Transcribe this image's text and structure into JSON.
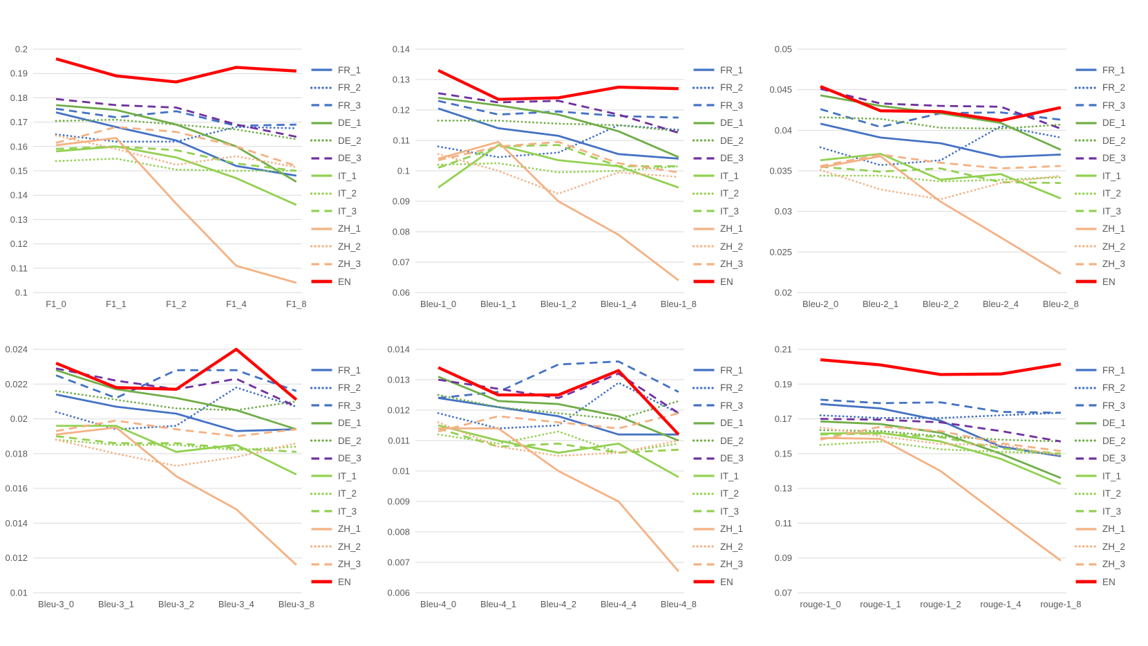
{
  "page": {
    "background": "#ffffff"
  },
  "palette": {
    "fr_blue": "#4472C4",
    "de_green": "#70AD47",
    "de3_purple": "#7030A0",
    "it_green": "#92D050",
    "zh_peach": "#F4B183",
    "en_red": "#FF0000",
    "gridline": "#D9D9D9",
    "axis_text": "#595959",
    "legend_text": "#595959"
  },
  "series_styles": {
    "FR_1": {
      "color": "#4472C4",
      "dash": "solid",
      "width": 2.8
    },
    "FR_2": {
      "color": "#4472C4",
      "dash": "dotted",
      "width": 2.8
    },
    "FR_3": {
      "color": "#4472C4",
      "dash": "dashed",
      "width": 2.8
    },
    "DE_1": {
      "color": "#70AD47",
      "dash": "solid",
      "width": 2.8
    },
    "DE_2": {
      "color": "#70AD47",
      "dash": "dotted",
      "width": 2.8
    },
    "DE_3": {
      "color": "#7030A0",
      "dash": "dashed",
      "width": 2.8
    },
    "IT_1": {
      "color": "#92D050",
      "dash": "solid",
      "width": 2.8
    },
    "IT_2": {
      "color": "#92D050",
      "dash": "dotted",
      "width": 2.8
    },
    "IT_3": {
      "color": "#92D050",
      "dash": "dashed",
      "width": 2.8
    },
    "ZH_1": {
      "color": "#F4B183",
      "dash": "solid",
      "width": 2.8
    },
    "ZH_2": {
      "color": "#F4B183",
      "dash": "dotted",
      "width": 2.8
    },
    "ZH_3": {
      "color": "#F4B183",
      "dash": "dashed",
      "width": 2.8
    },
    "EN": {
      "color": "#FF0000",
      "dash": "solid",
      "width": 4.3
    }
  },
  "legend_items": [
    "FR_1",
    "FR_2",
    "FR_3",
    "DE_1",
    "DE_2",
    "DE_3",
    "IT_1",
    "IT_2",
    "IT_3",
    "ZH_1",
    "ZH_2",
    "ZH_3",
    "EN"
  ],
  "chart_data": [
    {
      "type": "line",
      "title": "",
      "grid": true,
      "legend_position": "right",
      "x_labels": [
        "F1_0",
        "F1_1",
        "F1_2",
        "F1_4",
        "F1_8"
      ],
      "y_axis": {
        "min": 0.1,
        "max": 0.2,
        "step": 0.01
      },
      "series": [
        {
          "name": "FR_1",
          "values": [
            0.174,
            0.168,
            0.1625,
            0.152,
            0.148
          ]
        },
        {
          "name": "FR_2",
          "values": [
            0.165,
            0.162,
            0.162,
            0.168,
            0.1675
          ]
        },
        {
          "name": "FR_3",
          "values": [
            0.1755,
            0.172,
            0.1745,
            0.1685,
            0.169
          ]
        },
        {
          "name": "DE_1",
          "values": [
            0.177,
            0.175,
            0.169,
            0.16,
            0.1455
          ]
        },
        {
          "name": "DE_2",
          "values": [
            0.1705,
            0.171,
            0.169,
            0.167,
            0.163
          ]
        },
        {
          "name": "DE_3",
          "values": [
            0.1795,
            0.177,
            0.176,
            0.169,
            0.164
          ]
        },
        {
          "name": "IT_1",
          "values": [
            0.158,
            0.16,
            0.1555,
            0.147,
            0.136
          ]
        },
        {
          "name": "IT_2",
          "values": [
            0.154,
            0.155,
            0.1505,
            0.15,
            0.15
          ]
        },
        {
          "name": "IT_3",
          "values": [
            0.159,
            0.16,
            0.1585,
            0.153,
            0.15
          ]
        },
        {
          "name": "ZH_1",
          "values": [
            0.1605,
            0.1635,
            0.1365,
            0.111,
            0.104
          ]
        },
        {
          "name": "ZH_2",
          "values": [
            0.1645,
            0.159,
            0.1525,
            0.156,
            0.1515
          ]
        },
        {
          "name": "ZH_3",
          "values": [
            0.1615,
            0.168,
            0.166,
            0.16,
            0.152
          ]
        },
        {
          "name": "EN",
          "values": [
            0.196,
            0.189,
            0.1865,
            0.1925,
            0.191
          ]
        }
      ]
    },
    {
      "type": "line",
      "title": "",
      "grid": true,
      "legend_position": "right",
      "x_labels": [
        "Bleu-1_0",
        "Bleu-1_1",
        "Bleu-1_2",
        "Bleu-1_4",
        "Bleu-1_8"
      ],
      "y_axis": {
        "min": 0.06,
        "max": 0.14,
        "step": 0.01
      },
      "series": [
        {
          "name": "FR_1",
          "values": [
            0.1205,
            0.114,
            0.1115,
            0.1055,
            0.104
          ]
        },
        {
          "name": "FR_2",
          "values": [
            0.108,
            0.1045,
            0.106,
            0.115,
            0.1135
          ]
        },
        {
          "name": "FR_3",
          "values": [
            0.123,
            0.1185,
            0.1195,
            0.118,
            0.1175
          ]
        },
        {
          "name": "DE_1",
          "values": [
            0.124,
            0.1215,
            0.1185,
            0.113,
            0.1045
          ]
        },
        {
          "name": "DE_2",
          "values": [
            0.1165,
            0.1165,
            0.1155,
            0.115,
            0.113
          ]
        },
        {
          "name": "DE_3",
          "values": [
            0.1255,
            0.1225,
            0.123,
            0.1185,
            0.1125
          ]
        },
        {
          "name": "IT_1",
          "values": [
            0.0945,
            0.1085,
            0.1035,
            0.1015,
            0.0945
          ]
        },
        {
          "name": "IT_2",
          "values": [
            0.102,
            0.1025,
            0.0995,
            0.1,
            0.1015
          ]
        },
        {
          "name": "IT_3",
          "values": [
            0.101,
            0.108,
            0.1085,
            0.1015,
            0.1015
          ]
        },
        {
          "name": "ZH_1",
          "values": [
            0.104,
            0.1095,
            0.09,
            0.079,
            0.064
          ]
        },
        {
          "name": "ZH_2",
          "values": [
            0.1055,
            0.1,
            0.0925,
            0.0995,
            0.098
          ]
        },
        {
          "name": "ZH_3",
          "values": [
            0.1035,
            0.108,
            0.1095,
            0.1025,
            0.0995
          ]
        },
        {
          "name": "EN",
          "values": [
            0.133,
            0.1235,
            0.124,
            0.1275,
            0.127
          ]
        }
      ]
    },
    {
      "type": "line",
      "title": "",
      "grid": true,
      "legend_position": "right",
      "x_labels": [
        "Bleu-2_0",
        "Bleu-2_1",
        "Bleu-2_2",
        "Bleu-2_4",
        "Bleu-2_8"
      ],
      "y_axis": {
        "min": 0.02,
        "max": 0.05,
        "step": 0.005
      },
      "series": [
        {
          "name": "FR_1",
          "values": [
            0.0408,
            0.0391,
            0.0384,
            0.0367,
            0.037
          ]
        },
        {
          "name": "FR_2",
          "values": [
            0.0379,
            0.0357,
            0.0363,
            0.0405,
            0.0391
          ]
        },
        {
          "name": "FR_3",
          "values": [
            0.0426,
            0.0404,
            0.0421,
            0.0422,
            0.0413
          ]
        },
        {
          "name": "DE_1",
          "values": [
            0.0443,
            0.043,
            0.0421,
            0.0409,
            0.0376
          ]
        },
        {
          "name": "DE_2",
          "values": [
            0.0416,
            0.0414,
            0.0403,
            0.0402,
            0.0407
          ]
        },
        {
          "name": "DE_3",
          "values": [
            0.0451,
            0.0433,
            0.043,
            0.0429,
            0.0402
          ]
        },
        {
          "name": "IT_1",
          "values": [
            0.0363,
            0.0371,
            0.0339,
            0.0346,
            0.0316
          ]
        },
        {
          "name": "IT_2",
          "values": [
            0.0344,
            0.0344,
            0.0337,
            0.0339,
            0.0342
          ]
        },
        {
          "name": "IT_3",
          "values": [
            0.0355,
            0.0349,
            0.0353,
            0.0336,
            0.0335
          ]
        },
        {
          "name": "ZH_1",
          "values": [
            0.0354,
            0.0368,
            0.0312,
            0.0268,
            0.0223
          ]
        },
        {
          "name": "ZH_2",
          "values": [
            0.0351,
            0.0327,
            0.0315,
            0.0335,
            0.0344
          ]
        },
        {
          "name": "ZH_3",
          "values": [
            0.0356,
            0.037,
            0.036,
            0.0353,
            0.0356
          ]
        },
        {
          "name": "EN",
          "values": [
            0.0454,
            0.0424,
            0.0423,
            0.0412,
            0.0428
          ]
        }
      ]
    },
    {
      "type": "line",
      "title": "",
      "grid": true,
      "legend_position": "right",
      "x_labels": [
        "Bleu-3_0",
        "Bleu-3_1",
        "Bleu-3_2",
        "Bleu-3_4",
        "Bleu-3_8"
      ],
      "y_axis": {
        "min": 0.01,
        "max": 0.024,
        "step": 0.002
      },
      "series": [
        {
          "name": "FR_1",
          "values": [
            0.0214,
            0.0207,
            0.0203,
            0.0193,
            0.0194
          ]
        },
        {
          "name": "FR_2",
          "values": [
            0.0204,
            0.0194,
            0.0196,
            0.0218,
            0.0207
          ]
        },
        {
          "name": "FR_3",
          "values": [
            0.0225,
            0.0212,
            0.0228,
            0.0228,
            0.0216
          ]
        },
        {
          "name": "DE_1",
          "values": [
            0.0228,
            0.0217,
            0.0212,
            0.0205,
            0.0194
          ]
        },
        {
          "name": "DE_2",
          "values": [
            0.0216,
            0.0211,
            0.0206,
            0.0205,
            0.021
          ]
        },
        {
          "name": "DE_3",
          "values": [
            0.0229,
            0.0222,
            0.0217,
            0.0223,
            0.0207
          ]
        },
        {
          "name": "IT_1",
          "values": [
            0.0196,
            0.0196,
            0.0181,
            0.0185,
            0.0168
          ]
        },
        {
          "name": "IT_2",
          "values": [
            0.0188,
            0.0185,
            0.0185,
            0.0182,
            0.0184
          ]
        },
        {
          "name": "IT_3",
          "values": [
            0.019,
            0.0186,
            0.0186,
            0.0183,
            0.0181
          ]
        },
        {
          "name": "ZH_1",
          "values": [
            0.0191,
            0.0195,
            0.0167,
            0.0148,
            0.0116
          ]
        },
        {
          "name": "ZH_2",
          "values": [
            0.0188,
            0.018,
            0.0173,
            0.0178,
            0.0186
          ]
        },
        {
          "name": "ZH_3",
          "values": [
            0.0193,
            0.0199,
            0.0194,
            0.019,
            0.0194
          ]
        },
        {
          "name": "EN",
          "values": [
            0.0232,
            0.0218,
            0.0217,
            0.024,
            0.0211
          ]
        }
      ]
    },
    {
      "type": "line",
      "title": "",
      "grid": true,
      "legend_position": "right",
      "x_labels": [
        "Bleu-4_0",
        "Bleu-4_1",
        "Bleu-4_2",
        "Bleu-4_4",
        "Bleu-4_8"
      ],
      "y_axis": {
        "min": 0.006,
        "max": 0.014,
        "step": 0.001
      },
      "series": [
        {
          "name": "FR_1",
          "values": [
            0.0124,
            0.0121,
            0.0118,
            0.0112,
            0.0112
          ]
        },
        {
          "name": "FR_2",
          "values": [
            0.0119,
            0.0114,
            0.0115,
            0.0129,
            0.0119
          ]
        },
        {
          "name": "FR_3",
          "values": [
            0.0124,
            0.0126,
            0.0135,
            0.0136,
            0.0126
          ]
        },
        {
          "name": "DE_1",
          "values": [
            0.0131,
            0.0123,
            0.0122,
            0.0118,
            0.011
          ]
        },
        {
          "name": "DE_2",
          "values": [
            0.0125,
            0.0121,
            0.0119,
            0.0117,
            0.0123
          ]
        },
        {
          "name": "DE_3",
          "values": [
            0.013,
            0.0127,
            0.0124,
            0.0132,
            0.0119
          ]
        },
        {
          "name": "IT_1",
          "values": [
            0.0115,
            0.011,
            0.0106,
            0.0109,
            0.0098
          ]
        },
        {
          "name": "IT_2",
          "values": [
            0.0112,
            0.0109,
            0.0113,
            0.0106,
            0.0109
          ]
        },
        {
          "name": "IT_3",
          "values": [
            0.0114,
            0.0108,
            0.0109,
            0.0106,
            0.0107
          ]
        },
        {
          "name": "ZH_1",
          "values": [
            0.0114,
            0.0114,
            0.01,
            0.009,
            0.0067
          ]
        },
        {
          "name": "ZH_2",
          "values": [
            0.0116,
            0.0108,
            0.0105,
            0.0106,
            0.011
          ]
        },
        {
          "name": "ZH_3",
          "values": [
            0.0113,
            0.0118,
            0.0116,
            0.0114,
            0.0119
          ]
        },
        {
          "name": "EN",
          "values": [
            0.0134,
            0.0125,
            0.0125,
            0.0133,
            0.0112
          ]
        }
      ]
    },
    {
      "type": "line",
      "title": "",
      "grid": true,
      "legend_position": "right",
      "x_labels": [
        "rouge-1_0",
        "rouge-1_1",
        "rouge-1_2",
        "rouge-1_4",
        "rouge-1_8"
      ],
      "y_axis": {
        "min": 0.07,
        "max": 0.21,
        "step": 0.02
      },
      "series": [
        {
          "name": "FR_1",
          "values": [
            0.1785,
            0.176,
            0.169,
            0.154,
            0.1485
          ]
        },
        {
          "name": "FR_2",
          "values": [
            0.172,
            0.1705,
            0.1705,
            0.172,
            0.1735
          ]
        },
        {
          "name": "FR_3",
          "values": [
            0.181,
            0.179,
            0.1795,
            0.174,
            0.1735
          ]
        },
        {
          "name": "DE_1",
          "values": [
            0.1685,
            0.167,
            0.162,
            0.15,
            0.136
          ]
        },
        {
          "name": "DE_2",
          "values": [
            0.1635,
            0.163,
            0.16,
            0.158,
            0.157
          ]
        },
        {
          "name": "DE_3",
          "values": [
            0.17,
            0.1695,
            0.168,
            0.163,
            0.157
          ]
        },
        {
          "name": "IT_1",
          "values": [
            0.1615,
            0.162,
            0.157,
            0.147,
            0.1325
          ]
        },
        {
          "name": "IT_2",
          "values": [
            0.155,
            0.157,
            0.1525,
            0.151,
            0.15
          ]
        },
        {
          "name": "IT_3",
          "values": [
            0.161,
            0.1615,
            0.1595,
            0.153,
            0.15
          ]
        },
        {
          "name": "ZH_1",
          "values": [
            0.159,
            0.1585,
            0.14,
            0.114,
            0.0885
          ]
        },
        {
          "name": "ZH_2",
          "values": [
            0.165,
            0.16,
            0.1555,
            0.155,
            0.149
          ]
        },
        {
          "name": "ZH_3",
          "values": [
            0.158,
            0.1655,
            0.163,
            0.156,
            0.1515
          ]
        },
        {
          "name": "EN",
          "values": [
            0.204,
            0.201,
            0.1955,
            0.1958,
            0.2015
          ]
        }
      ]
    }
  ]
}
